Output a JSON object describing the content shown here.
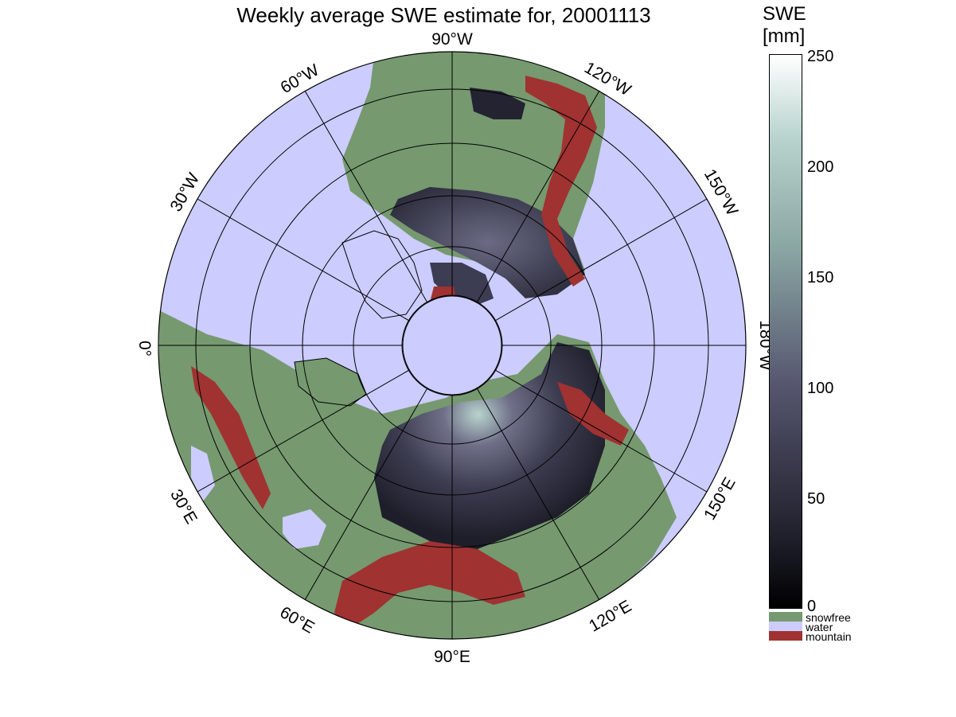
{
  "title": "Weekly average SWE estimate for, 20001113",
  "colorbar": {
    "title_line1": "SWE",
    "title_line2": "[mm]",
    "ticks": [
      "250",
      "200",
      "150",
      "100",
      "50",
      "0"
    ],
    "min": 0,
    "max": 250,
    "categories": [
      {
        "label": "snowfree",
        "color": "#76996f"
      },
      {
        "label": "water",
        "color": "#ccccff"
      },
      {
        "label": "mountain",
        "color": "#a03232"
      }
    ]
  },
  "map": {
    "projection": "north polar stereographic",
    "longitude_labels": [
      {
        "text": "90°W",
        "lon": "90W"
      },
      {
        "text": "120°W",
        "lon": "120W"
      },
      {
        "text": "150°W",
        "lon": "150W"
      },
      {
        "text": "180°W",
        "lon": "180W"
      },
      {
        "text": "150°E",
        "lon": "150E"
      },
      {
        "text": "120°E",
        "lon": "120E"
      },
      {
        "text": "90°E",
        "lon": "90E"
      },
      {
        "text": "60°E",
        "lon": "60E"
      },
      {
        "text": "30°E",
        "lon": "30E"
      },
      {
        "text": "0°",
        "lon": "0"
      },
      {
        "text": "30°W",
        "lon": "30W"
      },
      {
        "text": "60°W",
        "lon": "60W"
      }
    ],
    "colors": {
      "water": "#ccccff",
      "snowfree": "#76996f",
      "mountain": "#a03232",
      "snow_low": "#1e1e2a",
      "snow_mid": "#55556e",
      "snow_high": "#b8d3cd"
    }
  }
}
